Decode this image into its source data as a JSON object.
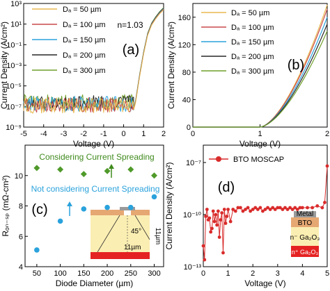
{
  "colors": {
    "series": [
      "#e8b84e",
      "#c84848",
      "#2aa2dc",
      "#262626",
      "#6f9f2a"
    ],
    "diamond": "#4f9a2a",
    "circle": "#2aa2dc",
    "annot_green": "#3f8a1c",
    "annot_blue": "#2aa2dc",
    "bto_red": "#d92b2b",
    "dev_tan": "#e6a873",
    "dev_yellow": "#fbeeb2",
    "dev_red": "#e52222",
    "metal_gray": "#9a9a9a"
  },
  "chart_data": [
    {
      "id": "a",
      "type": "line",
      "panel_label": "(a)",
      "xlabel": "Voltage (V)",
      "ylabel": "Current Density (A/cm²)",
      "xlim": [
        -5,
        2
      ],
      "ylim_log10": [
        -9,
        3
      ],
      "log_y": true,
      "xticks": [
        -5,
        -4,
        -3,
        -2,
        -1,
        0,
        1,
        2
      ],
      "xtick_labels": [
        "-5",
        "-4",
        "-3",
        "-2",
        "-1",
        "0",
        "1",
        "2"
      ],
      "yticks_log10": [
        3,
        1,
        -1,
        -3,
        -5,
        -7,
        -9
      ],
      "ytick_labels": [
        "10³",
        "10¹",
        "10⁻¹",
        "10⁻³",
        "10⁻⁵",
        "10⁻⁷",
        "10⁻⁹"
      ],
      "annotation": "n=1.03",
      "legend_position": "top-left",
      "legend_labels": [
        "Dₐ = 50 µm",
        "Dₐ = 100 µm",
        "Dₐ = 150 µm",
        "Dₐ = 200 µm",
        "Dₐ = 300 µm"
      ],
      "noise_floor_log10": [
        -7.5,
        -6.0
      ],
      "forward_curve_log10": [
        [
          0.4,
          -8.0
        ],
        [
          0.6,
          -6.5
        ],
        [
          0.8,
          -4.0
        ],
        [
          1.0,
          -1.8
        ],
        [
          1.2,
          0.0
        ],
        [
          1.4,
          1.0
        ],
        [
          1.6,
          1.6
        ],
        [
          1.8,
          2.1
        ],
        [
          2.0,
          2.5
        ]
      ]
    },
    {
      "id": "b",
      "type": "line",
      "panel_label": "(b)",
      "xlabel": "Voltage (V)",
      "ylabel": "Current Density (A/cm²)",
      "xlim": [
        0,
        2
      ],
      "ylim": [
        0,
        180
      ],
      "xticks": [
        0,
        1,
        2
      ],
      "yticks": [
        0,
        40,
        80,
        120,
        160
      ],
      "legend_position": "top-right",
      "legend_labels": [
        "Dₐ = 50 µm",
        "Dₐ = 100 µm",
        "Dₐ = 150 µm",
        "Dₐ = 200 µm",
        "Dₐ = 300 µm"
      ],
      "turn_on_voltage": 1.0,
      "end_values_at_2V": [
        178,
        172,
        160,
        150,
        140
      ]
    },
    {
      "id": "c",
      "type": "scatter",
      "panel_label": "(c)",
      "xlabel": "Diode Diameter (µm)",
      "ylabel": "Rₒₙ₋ₛₚ (mΩ-cm²)",
      "xlim": [
        25,
        320
      ],
      "ylim": [
        4,
        12
      ],
      "xticks": [
        50,
        100,
        150,
        200,
        250,
        300
      ],
      "yticks": [
        4,
        6,
        8,
        10
      ],
      "x": [
        50,
        100,
        150,
        200,
        250,
        300
      ],
      "series": [
        {
          "name": "Considering Current Spreading",
          "marker": "diamond",
          "values": [
            10.5,
            10.4,
            10.1,
            10.3,
            10.4,
            10.0
          ]
        },
        {
          "name": "Not considering Current Spreading",
          "marker": "circle",
          "values": [
            5.1,
            7.0,
            7.8,
            7.9,
            7.9,
            8.6
          ]
        }
      ],
      "inset": {
        "angle_label": "45°",
        "dim_label": "11µm",
        "side_label": "11µm"
      }
    },
    {
      "id": "d",
      "type": "line",
      "panel_label": "(d)",
      "xlabel": "Voltage (V)",
      "ylabel": "Current Density (A/cm²)",
      "xlim": [
        0,
        5
      ],
      "ylim_log10": [
        -13,
        -6
      ],
      "log_y": true,
      "xticks": [
        0,
        1,
        2,
        3,
        4,
        5
      ],
      "yticks_log10": [
        -7,
        -10,
        -13
      ],
      "ytick_labels": [
        "10⁻⁷",
        "10⁻¹⁰",
        "10⁻¹³"
      ],
      "legend_position": "top-left",
      "series": [
        {
          "name": "BTO MOSCAP",
          "marker": "circle"
        }
      ],
      "x": [
        0.0,
        0.05,
        0.1,
        0.15,
        0.2,
        0.25,
        0.3,
        0.35,
        0.4,
        0.45,
        0.5,
        0.55,
        0.6,
        0.65,
        0.7,
        0.75,
        0.8,
        0.85,
        0.9,
        0.95,
        1.0,
        1.1,
        1.2,
        1.3,
        1.4,
        1.5,
        1.6,
        1.7,
        1.8,
        1.9,
        2.0,
        2.1,
        2.2,
        2.3,
        2.4,
        2.5,
        2.6,
        2.7,
        2.8,
        2.9,
        3.0,
        3.1,
        3.2,
        3.3,
        3.4,
        3.5,
        3.6,
        3.7,
        3.8,
        3.9,
        4.0,
        4.2,
        4.4,
        4.6,
        4.8,
        4.9,
        5.0
      ],
      "values_log10": [
        -11.8,
        -12.6,
        -10.1,
        -9.7,
        -10.3,
        -10.2,
        -11.0,
        -10.8,
        -9.8,
        -10.4,
        -10.0,
        -10.6,
        -9.8,
        -11.3,
        -10.3,
        -9.9,
        -12.2,
        -9.7,
        -10.5,
        -10.1,
        -9.7,
        -10.4,
        -9.7,
        -9.8,
        -9.6,
        -9.6,
        -9.8,
        -9.7,
        -9.6,
        -9.8,
        -9.7,
        -9.6,
        -9.7,
        -9.6,
        -9.8,
        -9.7,
        -9.6,
        -9.7,
        -9.6,
        -9.7,
        -9.6,
        -9.6,
        -9.7,
        -9.6,
        -9.7,
        -9.6,
        -9.7,
        -9.6,
        -9.7,
        -9.6,
        -9.6,
        -9.6,
        -9.6,
        -9.5,
        -9.6,
        -9.3,
        -7.2
      ],
      "inset_labels": [
        "Metal",
        "BTO",
        "n⁻ Ga₂O₃",
        "n⁺ Ga₂O₃"
      ]
    }
  ]
}
